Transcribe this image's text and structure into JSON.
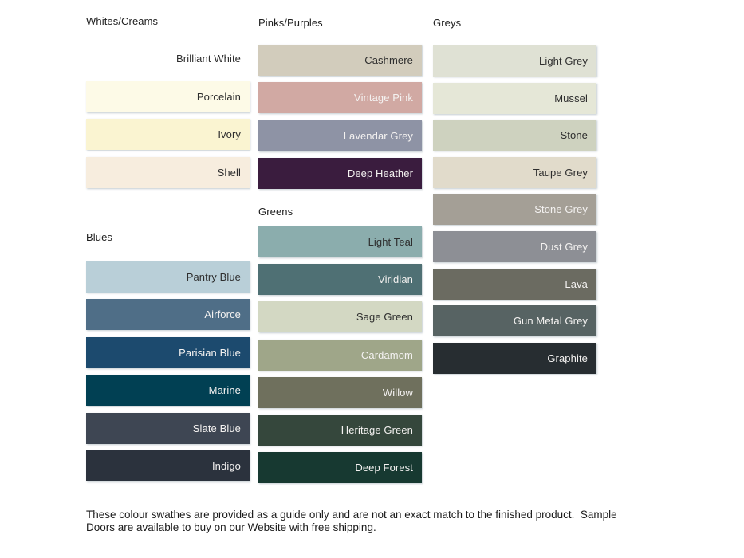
{
  "colors": {
    "background": "#ffffff",
    "heading": "#1f1f1f",
    "dark_label": "#2e2e2e",
    "light_label": "#f4f2f1"
  },
  "columns": [
    {
      "sections": [
        {
          "title": "Whites/Creams",
          "swatches": [
            {
              "name": "Brilliant White",
              "hex": "#ffffff",
              "light_text": false
            },
            {
              "name": "Porcelain",
              "hex": "#fdfae7",
              "light_text": false
            },
            {
              "name": "Ivory",
              "hex": "#faf4d1",
              "light_text": false
            },
            {
              "name": "Shell",
              "hex": "#f7edde",
              "light_text": false
            }
          ]
        },
        {
          "title": "Blues",
          "swatches": [
            {
              "name": "Pantry Blue",
              "hex": "#b9cfd8",
              "light_text": false
            },
            {
              "name": "Airforce",
              "hex": "#4f6e87",
              "light_text": true
            },
            {
              "name": "Parisian Blue",
              "hex": "#1c4a6e",
              "light_text": true
            },
            {
              "name": "Marine",
              "hex": "#014053",
              "light_text": true
            },
            {
              "name": "Slate Blue",
              "hex": "#3e4653",
              "light_text": true
            },
            {
              "name": "Indigo",
              "hex": "#2b323d",
              "light_text": true
            }
          ]
        }
      ]
    },
    {
      "sections": [
        {
          "title": "Pinks/Purples",
          "swatches": [
            {
              "name": "Cashmere",
              "hex": "#d2ccbc",
              "light_text": false
            },
            {
              "name": "Vintage Pink",
              "hex": "#d1a9a3",
              "light_text": true
            },
            {
              "name": "Lavendar Grey",
              "hex": "#8e93a5",
              "light_text": true
            },
            {
              "name": "Deep Heather",
              "hex": "#3a1c3e",
              "light_text": true
            }
          ]
        },
        {
          "title": "Greens",
          "swatches": [
            {
              "name": "Light Teal",
              "hex": "#8badad",
              "light_text": false
            },
            {
              "name": "Viridian",
              "hex": "#4f7074",
              "light_text": true
            },
            {
              "name": "Sage Green",
              "hex": "#d3d8c3",
              "light_text": false
            },
            {
              "name": "Cardamom",
              "hex": "#9fa689",
              "light_text": true
            },
            {
              "name": "Willow",
              "hex": "#6f705d",
              "light_text": true
            },
            {
              "name": "Heritage Green",
              "hex": "#35473c",
              "light_text": true
            },
            {
              "name": "Deep Forest",
              "hex": "#173931",
              "light_text": true
            }
          ]
        }
      ]
    },
    {
      "sections": [
        {
          "title": "Greys",
          "swatches": [
            {
              "name": "Light Grey",
              "hex": "#dfe1d4",
              "light_text": false
            },
            {
              "name": "Mussel",
              "hex": "#e5e7d7",
              "light_text": false
            },
            {
              "name": "Stone",
              "hex": "#ced2bf",
              "light_text": false
            },
            {
              "name": "Taupe Grey",
              "hex": "#e1dbcb",
              "light_text": false
            },
            {
              "name": "Stone Grey",
              "hex": "#a49f96",
              "light_text": true
            },
            {
              "name": "Dust Grey",
              "hex": "#8d8f95",
              "light_text": true
            },
            {
              "name": "Lava",
              "hex": "#6b6b61",
              "light_text": true
            },
            {
              "name": "Gun Metal Grey",
              "hex": "#576363",
              "light_text": true
            },
            {
              "name": "Graphite",
              "hex": "#272d31",
              "light_text": true
            }
          ]
        }
      ]
    }
  ],
  "footer": {
    "text": "These colour swathes are provided as a guide only and are not an exact match to the finished product.  Sample\nDoors are available to buy on our Website with free shipping."
  }
}
